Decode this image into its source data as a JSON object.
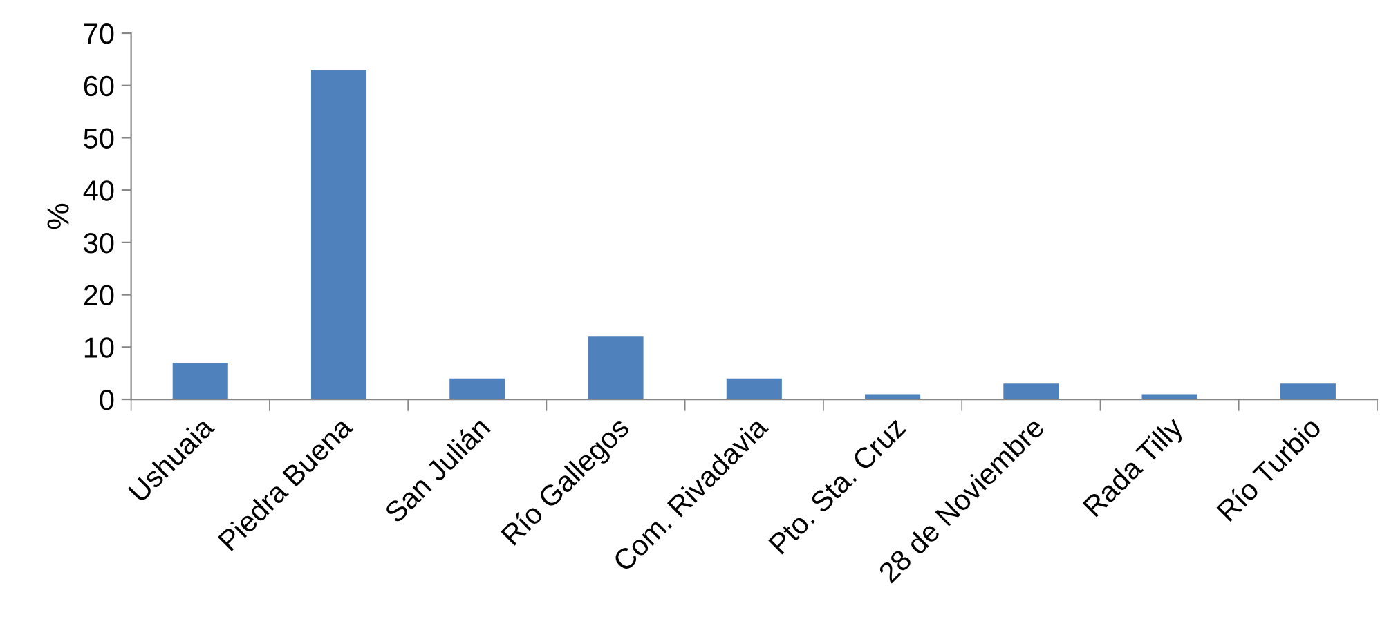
{
  "chart_data": {
    "type": "bar",
    "ylabel": "%",
    "categories": [
      "Ushuaia",
      "Piedra Buena",
      "San Julián",
      "Río Gallegos",
      "Com. Rivadavia",
      "Pto. Sta. Cruz",
      "28 de Noviembre",
      "Rada Tilly",
      "Río Turbio"
    ],
    "values": [
      7,
      63,
      4,
      12,
      4,
      1,
      3,
      1,
      3
    ],
    "color": "#4f81bd",
    "ylim": [
      0,
      70
    ],
    "yticks": [
      0,
      10,
      20,
      30,
      40,
      50,
      60,
      70
    ],
    "grid": false,
    "legend": false
  }
}
